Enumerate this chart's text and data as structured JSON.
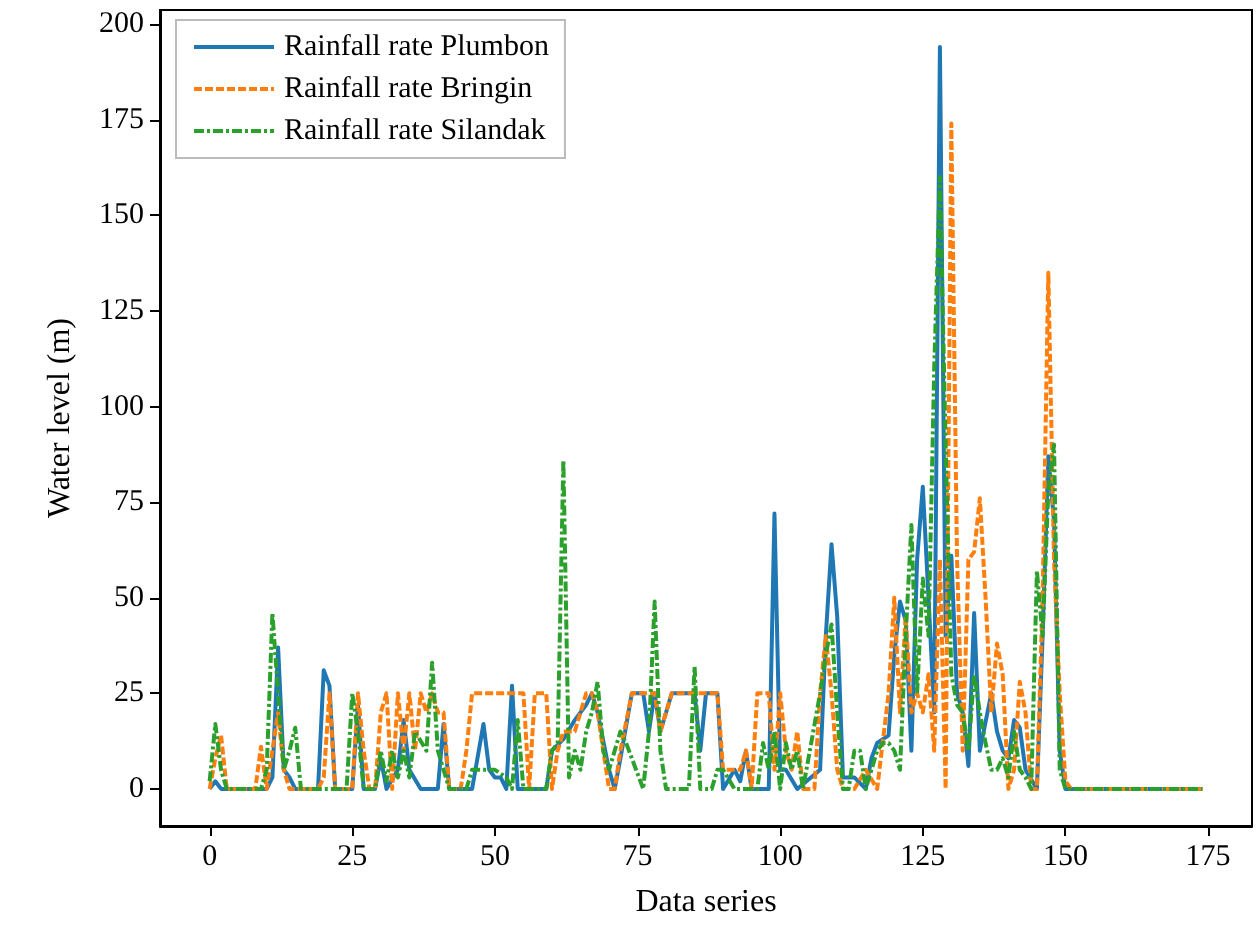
{
  "chart_data": {
    "type": "line",
    "xlabel": "Data series",
    "ylabel": "Water level (m)",
    "xlim": [
      -8.7,
      182.7
    ],
    "ylim": [
      -9.7,
      203.7
    ],
    "xticks": [
      0,
      25,
      50,
      75,
      100,
      125,
      150,
      175
    ],
    "yticks": [
      0,
      25,
      50,
      75,
      100,
      125,
      150,
      175,
      200
    ],
    "grid": false,
    "legend": "top left",
    "marker": "none",
    "series": [
      {
        "name": "Rainfall rate Plumbon",
        "color": "#1f77b4",
        "line_style": "solid",
        "x": [
          0,
          1,
          2,
          10,
          11,
          12,
          13,
          14,
          15,
          19,
          20,
          21,
          22,
          25,
          26,
          27,
          29,
          30,
          31,
          33,
          34,
          35,
          37,
          40,
          41,
          42,
          46,
          48,
          49,
          50,
          51,
          52,
          53,
          54,
          59,
          60,
          62,
          64,
          66,
          67,
          68,
          70,
          71,
          72,
          74,
          76,
          77,
          78,
          79,
          81,
          85,
          86,
          87,
          89,
          90,
          92,
          93,
          94,
          95,
          98,
          99,
          100,
          101,
          103,
          107,
          108,
          109,
          110,
          111,
          113,
          115,
          116,
          117,
          119,
          120,
          121,
          122,
          123,
          124,
          125,
          126,
          127,
          128,
          129,
          130,
          131,
          132,
          133,
          134,
          135,
          137,
          138,
          139,
          140,
          141,
          142,
          143,
          145,
          146,
          147,
          148,
          149,
          150,
          174
        ],
        "values": [
          0,
          2,
          0,
          0,
          3,
          37,
          5,
          3,
          0,
          0,
          31,
          27,
          0,
          0,
          22,
          0,
          0,
          8,
          0,
          5,
          18,
          5,
          0,
          0,
          17,
          0,
          0,
          17,
          5,
          3,
          3,
          0,
          27,
          0,
          0,
          10,
          13,
          18,
          22,
          25,
          20,
          5,
          0,
          8,
          25,
          25,
          15,
          25,
          15,
          25,
          25,
          10,
          25,
          25,
          0,
          5,
          2,
          10,
          0,
          0,
          72,
          5,
          5,
          0,
          5,
          40,
          64,
          45,
          3,
          3,
          0,
          8,
          12,
          14,
          35,
          49,
          44,
          10,
          60,
          79,
          50,
          20,
          194,
          40,
          61,
          25,
          20,
          6,
          46,
          10,
          25,
          15,
          10,
          8,
          18,
          16,
          5,
          0,
          40,
          87,
          70,
          10,
          0,
          0
        ]
      },
      {
        "name": "Rainfall rate Bringin",
        "color": "#ff7f0e",
        "line_style": "dashed",
        "x": [
          0,
          1,
          2,
          3,
          8,
          9,
          10,
          11,
          12,
          13,
          14,
          19,
          20,
          21,
          22,
          25,
          26,
          27,
          28,
          29,
          30,
          31,
          32,
          33,
          34,
          35,
          36,
          37,
          38,
          39,
          40,
          41,
          42,
          44,
          45,
          46,
          55,
          56,
          57,
          59,
          60,
          61,
          62,
          64,
          66,
          67,
          68,
          70,
          71,
          72,
          74,
          78,
          79,
          81,
          88,
          89,
          90,
          93,
          94,
          95,
          96,
          98,
          99,
          100,
          101,
          102,
          103,
          104,
          106,
          107,
          108,
          109,
          110,
          111,
          113,
          115,
          117,
          119,
          120,
          121,
          122,
          123,
          124,
          125,
          126,
          127,
          128,
          129,
          130,
          131,
          132,
          133,
          134,
          135,
          136,
          137,
          138,
          139,
          140,
          141,
          142,
          143,
          144,
          145,
          146,
          147,
          148,
          149,
          150,
          151,
          174
        ],
        "values": [
          0,
          8,
          14,
          0,
          0,
          11,
          0,
          10,
          20,
          5,
          0,
          0,
          3,
          25,
          0,
          0,
          25,
          10,
          0,
          0,
          20,
          25,
          0,
          25,
          10,
          25,
          10,
          25,
          20,
          25,
          20,
          20,
          0,
          0,
          10,
          25,
          25,
          0,
          25,
          25,
          0,
          10,
          15,
          15,
          25,
          25,
          20,
          0,
          0,
          10,
          25,
          25,
          15,
          25,
          25,
          25,
          5,
          5,
          10,
          0,
          25,
          25,
          5,
          25,
          10,
          5,
          15,
          0,
          0,
          25,
          40,
          25,
          5,
          0,
          0,
          5,
          0,
          25,
          50,
          20,
          45,
          20,
          25,
          20,
          30,
          10,
          60,
          0,
          174,
          60,
          10,
          60,
          62,
          76,
          50,
          20,
          38,
          30,
          0,
          5,
          28,
          20,
          0,
          0,
          50,
          135,
          60,
          25,
          2,
          0,
          0
        ]
      },
      {
        "name": "Rainfall rate Silandak",
        "color": "#2ca02c",
        "line_style": "dotted",
        "x": [
          0,
          1,
          2,
          3,
          9,
          10,
          11,
          12,
          13,
          14,
          15,
          16,
          24,
          25,
          26,
          27,
          29,
          30,
          31,
          32,
          33,
          34,
          35,
          36,
          38,
          39,
          40,
          41,
          42,
          45,
          46,
          48,
          50,
          52,
          53,
          54,
          55,
          59,
          60,
          61,
          62,
          63,
          64,
          65,
          66,
          67,
          68,
          69,
          70,
          72,
          73,
          76,
          77,
          78,
          79,
          80,
          84,
          85,
          86,
          88,
          89,
          90,
          92,
          96,
          97,
          98,
          99,
          100,
          101,
          102,
          103,
          104,
          107,
          108,
          109,
          110,
          111,
          112,
          113,
          114,
          115,
          116,
          117,
          118,
          119,
          120,
          121,
          122,
          123,
          124,
          125,
          126,
          127,
          128,
          129,
          130,
          131,
          132,
          133,
          134,
          135,
          136,
          137,
          138,
          139,
          140,
          141,
          142,
          143,
          144,
          145,
          146,
          147,
          148,
          149,
          150,
          174
        ],
        "values": [
          2,
          17,
          5,
          0,
          0,
          5,
          46,
          25,
          5,
          10,
          16,
          0,
          0,
          25,
          15,
          0,
          0,
          10,
          2,
          10,
          3,
          10,
          3,
          15,
          10,
          33,
          10,
          5,
          0,
          0,
          5,
          5,
          5,
          3,
          0,
          18,
          0,
          0,
          10,
          12,
          86,
          3,
          10,
          5,
          15,
          20,
          28,
          10,
          5,
          15,
          12,
          0,
          15,
          49,
          10,
          0,
          0,
          32,
          0,
          0,
          5,
          5,
          0,
          0,
          12,
          5,
          15,
          0,
          12,
          5,
          10,
          0,
          25,
          35,
          43,
          20,
          0,
          0,
          10,
          10,
          0,
          5,
          10,
          12,
          12,
          10,
          5,
          40,
          69,
          25,
          55,
          40,
          110,
          160,
          90,
          30,
          22,
          20,
          10,
          30,
          20,
          12,
          5,
          5,
          8,
          3,
          15,
          5,
          3,
          0,
          57,
          40,
          78,
          90,
          5,
          0,
          0
        ]
      }
    ]
  }
}
